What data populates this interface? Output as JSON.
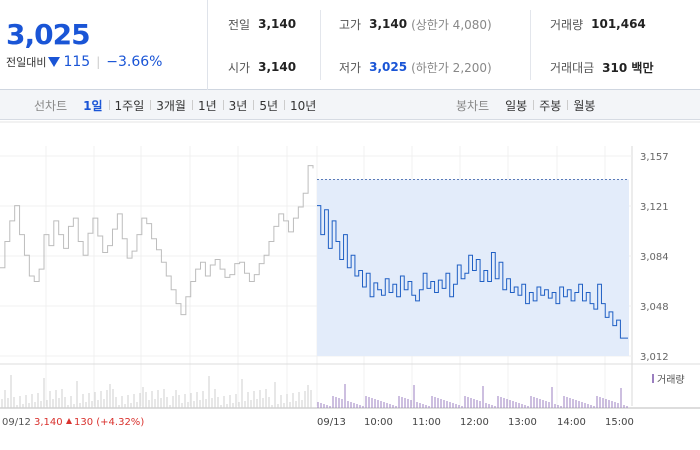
{
  "header": {
    "price": "3,025",
    "change_label": "전일대비",
    "change_value": "115",
    "change_pct": "−3.66%",
    "prev_close_label": "전일",
    "prev_close": "3,140",
    "open_label": "시가",
    "open": "3,140",
    "high_label": "고가",
    "high": "3,140",
    "high_sub": "(상한가 4,080)",
    "low_label": "저가",
    "low": "3,025",
    "low_sub": "(하한가 2,200)",
    "volume_label": "거래량",
    "volume": "101,464",
    "amount_label": "거래대금",
    "amount": "310 백만"
  },
  "toolbar": {
    "line_title": "선차트",
    "line_items": [
      "1일",
      "1주일",
      "3개월",
      "1년",
      "3년",
      "5년",
      "10년"
    ],
    "candle_title": "봉차트",
    "candle_items": [
      "일봉",
      "주봉",
      "월봉"
    ]
  },
  "chart_data": {
    "type": "line",
    "y_ticks": [
      "3,157",
      "3,121",
      "3,084",
      "3,048",
      "3,012"
    ],
    "ylim": [
      3012,
      3157
    ],
    "x_labels": [
      "09/13",
      "10:00",
      "11:00",
      "12:00",
      "13:00",
      "14:00",
      "15:00"
    ],
    "prev_day_label": "09/12",
    "prev_day_price": "3,140",
    "prev_day_change": "130 (+4.32%)",
    "volume_legend": "거래량",
    "colors": {
      "today_line": "#1f5fc4",
      "prev_line": "#bdbdbd",
      "fill": "#e3ecfa",
      "volume": "#9b7fc0"
    },
    "prev_series": [
      3076,
      3095,
      3110,
      3121,
      3100,
      3085,
      3070,
      3066,
      3075,
      3100,
      3092,
      3110,
      3100,
      3090,
      3106,
      3112,
      3095,
      3085,
      3101,
      3112,
      3099,
      3087,
      3092,
      3104,
      3115,
      3097,
      3083,
      3088,
      3100,
      3112,
      3108,
      3097,
      3089,
      3080,
      3070,
      3060,
      3050,
      3042,
      3055,
      3066,
      3075,
      3080,
      3070,
      3078,
      3082,
      3075,
      3069,
      3071,
      3079,
      3080,
      3072,
      3066,
      3071,
      3079,
      3085,
      3095,
      3106,
      3115,
      3110,
      3102,
      3112,
      3120,
      3130,
      3150,
      3148
    ],
    "today_series": [
      3121,
      3100,
      3118,
      3090,
      3110,
      3095,
      3082,
      3100,
      3076,
      3085,
      3070,
      3074,
      3062,
      3072,
      3055,
      3065,
      3060,
      3056,
      3068,
      3058,
      3064,
      3055,
      3070,
      3060,
      3066,
      3056,
      3052,
      3060,
      3072,
      3061,
      3066,
      3058,
      3067,
      3061,
      3072,
      3055,
      3064,
      3078,
      3068,
      3072,
      3085,
      3074,
      3082,
      3066,
      3074,
      3066,
      3087,
      3068,
      3080,
      3060,
      3068,
      3058,
      3062,
      3056,
      3064,
      3050,
      3058,
      3052,
      3062,
      3056,
      3060,
      3054,
      3058,
      3050,
      3062,
      3055,
      3060,
      3052,
      3058,
      3064,
      3052,
      3058,
      3050,
      3046,
      3064,
      3050,
      3040,
      3044,
      3034,
      3038,
      3025,
      3025,
      3025
    ]
  }
}
